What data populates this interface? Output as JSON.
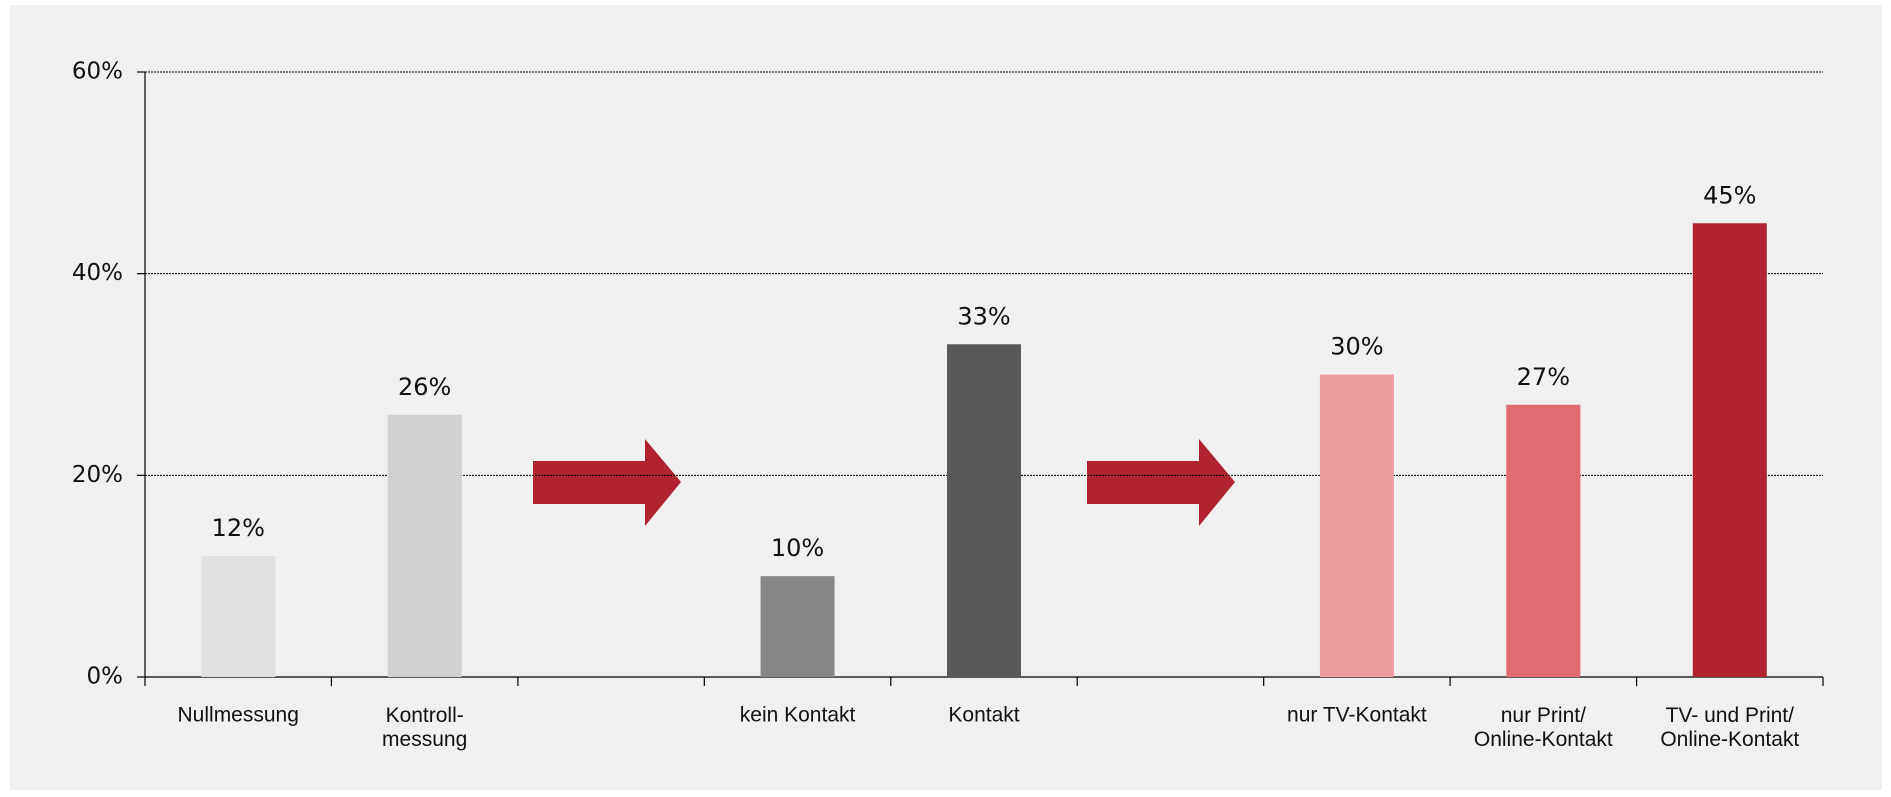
{
  "chart_data": {
    "type": "bar",
    "categories": [
      "Nullmessung",
      "Kontroll-\nmessung",
      null,
      "kein Kontakt",
      "Kontakt",
      null,
      "nur TV-Kontakt",
      "nur Print/\nOnline-Kontakt",
      "TV- und Print/\nOnline-Kontakt"
    ],
    "values": [
      12,
      26,
      null,
      10,
      33,
      null,
      30,
      27,
      45
    ],
    "value_labels": [
      "12%",
      "26%",
      null,
      "10%",
      "33%",
      null,
      "30%",
      "27%",
      "45%"
    ],
    "colors": [
      "#e0e0e0",
      "#d0d0d0",
      null,
      "#878787",
      "#585858",
      null,
      "#ec9ba1",
      "#e26a73",
      "#b1232e"
    ],
    "ylim": [
      0,
      60
    ],
    "yticks": [
      {
        "value": 0,
        "label": "0%"
      },
      {
        "value": 20,
        "label": "20%"
      },
      {
        "value": 40,
        "label": "40%"
      },
      {
        "value": 60,
        "label": "60%"
      }
    ],
    "grid": true
  }
}
